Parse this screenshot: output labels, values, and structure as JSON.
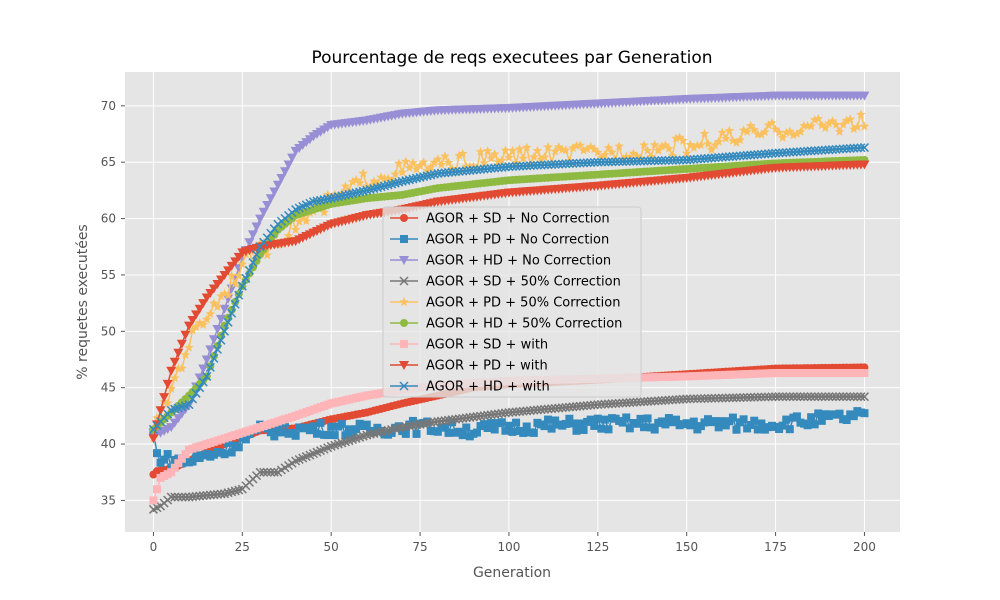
{
  "chart_data": {
    "type": "line",
    "title": "Pourcentage de reqs executees par Generation",
    "xlabel": "Generation",
    "ylabel": "% requetes executées",
    "xlim": [
      -8,
      210
    ],
    "ylim": [
      32.2,
      73
    ],
    "xticks": [
      0,
      25,
      50,
      75,
      100,
      125,
      150,
      175,
      200
    ],
    "yticks": [
      35,
      40,
      45,
      50,
      55,
      60,
      65,
      70
    ],
    "grid": true,
    "legend_position": "center",
    "style": "ggplot",
    "series": [
      {
        "name": "AGOR + SD + No Correction",
        "color": "#E24A33",
        "marker": "circle",
        "key_x": [
          0,
          1,
          5,
          10,
          20,
          30,
          40,
          50,
          60,
          70,
          80,
          90,
          100,
          125,
          150,
          175,
          200
        ],
        "key_y": [
          37.3,
          37.6,
          37.8,
          38.5,
          40.0,
          41.2,
          41.4,
          42.2,
          42.8,
          43.6,
          44.3,
          45.0,
          45.3,
          45.7,
          46.2,
          46.7,
          46.8
        ]
      },
      {
        "name": "AGOR + PD + No Correction",
        "color": "#348ABD",
        "marker": "square",
        "key_x": [
          0,
          1,
          5,
          10,
          20,
          30,
          40,
          50,
          60,
          70,
          80,
          90,
          100,
          125,
          150,
          175,
          200
        ],
        "key_y": [
          41.0,
          39.0,
          38.5,
          38.5,
          39.5,
          41.2,
          41.3,
          41.4,
          41.2,
          41.5,
          41.5,
          41.2,
          41.5,
          41.8,
          41.8,
          41.8,
          42.5
        ],
        "noise": 0.6
      },
      {
        "name": "AGOR + HD + No Correction",
        "color": "#988ED5",
        "marker": "triangle-down",
        "key_x": [
          0,
          2,
          5,
          10,
          15,
          20,
          25,
          30,
          35,
          40,
          45,
          50,
          60,
          70,
          80,
          100,
          125,
          150,
          175,
          200
        ],
        "key_y": [
          41.0,
          41.0,
          41.5,
          43.5,
          47.5,
          52.0,
          56.5,
          60.0,
          63.0,
          66.0,
          67.3,
          68.3,
          68.7,
          69.3,
          69.6,
          69.8,
          70.2,
          70.6,
          70.9,
          70.9
        ]
      },
      {
        "name": "AGOR + SD + 50% Correction",
        "color": "#777777",
        "marker": "x",
        "key_x": [
          0,
          2,
          5,
          10,
          20,
          25,
          30,
          35,
          40,
          50,
          60,
          70,
          80,
          100,
          125,
          150,
          175,
          200
        ],
        "key_y": [
          34.2,
          34.5,
          35.3,
          35.3,
          35.6,
          36.0,
          37.5,
          37.5,
          38.5,
          39.8,
          40.8,
          41.5,
          42.0,
          42.8,
          43.5,
          44.0,
          44.2,
          44.2
        ]
      },
      {
        "name": "AGOR + PD + 50% Correction",
        "color": "#FBC15E",
        "marker": "star",
        "key_x": [
          0,
          3,
          5,
          10,
          15,
          20,
          25,
          30,
          40,
          50,
          60,
          70,
          80,
          100,
          125,
          150,
          175,
          195,
          200
        ],
        "key_y": [
          41.0,
          43.0,
          45.0,
          49.0,
          51.5,
          53.5,
          56.0,
          57.0,
          59.5,
          61.5,
          63.5,
          64.3,
          64.7,
          65.5,
          65.8,
          66.5,
          67.8,
          68.5,
          68.5
        ],
        "noise": 0.8
      },
      {
        "name": "AGOR + HD + 50% Correction",
        "color": "#8EBA42",
        "marker": "circle",
        "key_x": [
          0,
          5,
          10,
          15,
          20,
          25,
          30,
          35,
          40,
          50,
          60,
          70,
          80,
          100,
          125,
          150,
          175,
          200
        ],
        "key_y": [
          41.3,
          42.8,
          44.3,
          46.0,
          50.5,
          54.0,
          56.8,
          59.0,
          60.3,
          61.3,
          61.8,
          62.1,
          62.7,
          63.4,
          63.9,
          64.4,
          64.9,
          65.2
        ]
      },
      {
        "name": "AGOR + SD + with",
        "color": "#FFB5B8",
        "marker": "square",
        "key_x": [
          0,
          2,
          5,
          10,
          20,
          30,
          40,
          50,
          60,
          70,
          80,
          90,
          100,
          125,
          150,
          175,
          200
        ],
        "key_y": [
          35.0,
          37.0,
          37.5,
          39.5,
          40.5,
          41.5,
          42.5,
          43.6,
          44.3,
          44.8,
          45.2,
          45.4,
          45.6,
          45.8,
          46.0,
          46.3,
          46.3
        ]
      },
      {
        "name": "AGOR + PD + with",
        "color": "#E24A33",
        "marker": "triangle-down",
        "key_x": [
          0,
          2,
          5,
          10,
          15,
          20,
          25,
          30,
          40,
          50,
          60,
          70,
          80,
          100,
          125,
          150,
          175,
          200
        ],
        "key_y": [
          40.5,
          43.0,
          46.5,
          50.5,
          53.0,
          55.0,
          57.0,
          57.5,
          58.0,
          59.5,
          60.3,
          60.8,
          61.5,
          62.3,
          62.9,
          63.6,
          64.5,
          64.8
        ]
      },
      {
        "name": "AGOR + HD + with",
        "color": "#348ABD",
        "marker": "x",
        "key_x": [
          0,
          2,
          5,
          10,
          15,
          20,
          25,
          30,
          35,
          40,
          45,
          50,
          60,
          70,
          80,
          100,
          125,
          150,
          175,
          200
        ],
        "key_y": [
          41.3,
          42.0,
          43.0,
          43.5,
          46.0,
          50.0,
          54.0,
          57.5,
          59.5,
          60.8,
          61.5,
          61.8,
          62.5,
          63.3,
          64.0,
          64.6,
          65.0,
          65.2,
          65.8,
          66.3
        ]
      }
    ]
  }
}
